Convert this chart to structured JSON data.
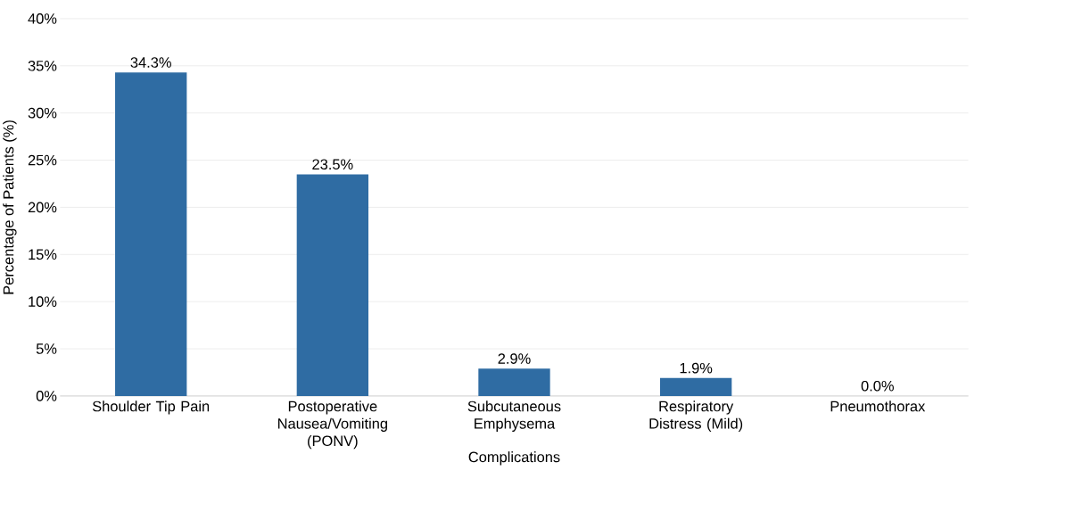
{
  "chart_data": {
    "type": "bar",
    "xlabel": "Complications",
    "ylabel": "Percentage of Patients (%)",
    "categories": [
      "Shoulder Tip Pain",
      "Postoperative Nausea/Vomiting (PONV)",
      "Subcutaneous Emphysema",
      "Respiratory Distress (Mild)",
      "Pneumothorax"
    ],
    "values": [
      34.3,
      23.5,
      2.9,
      1.9,
      0.0
    ],
    "value_labels": [
      "34.3%",
      "23.5%",
      "2.9%",
      "1.9%",
      "0.0%"
    ],
    "color": "#2f6ca3",
    "ylim": [
      0,
      40
    ],
    "yticks": [
      {
        "value": 0,
        "label": "0%"
      },
      {
        "value": 5,
        "label": "5%"
      },
      {
        "value": 10,
        "label": "10%"
      },
      {
        "value": 15,
        "label": "15%"
      },
      {
        "value": 20,
        "label": "20%"
      },
      {
        "value": 25,
        "label": "25%"
      },
      {
        "value": 30,
        "label": "30%"
      },
      {
        "value": 35,
        "label": "35%"
      },
      {
        "value": 40,
        "label": "40%"
      }
    ],
    "grid": "y"
  }
}
